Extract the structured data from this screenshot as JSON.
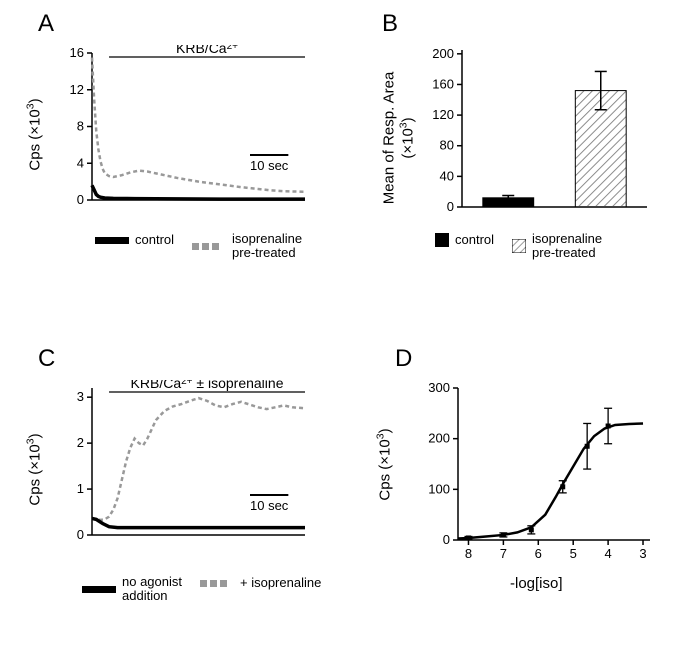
{
  "panelA": {
    "label": "A",
    "type": "line",
    "ylabel": "Cps (×10³)",
    "yticks": [
      0,
      4,
      8,
      12,
      16
    ],
    "ylim": [
      0,
      16
    ],
    "xlim": [
      0,
      100
    ],
    "annotation_text": "KRB/Ca²⁺",
    "annotation_bar_x": [
      8,
      100
    ],
    "scalebar_label": "10 sec",
    "scalebar_length": 18,
    "series": {
      "control": {
        "color": "#000000",
        "linewidth": 3.5,
        "dash": "none",
        "points": [
          [
            0,
            1.6
          ],
          [
            1,
            1.1
          ],
          [
            2,
            0.6
          ],
          [
            3,
            0.4
          ],
          [
            4,
            0.3
          ],
          [
            6,
            0.22
          ],
          [
            10,
            0.18
          ],
          [
            20,
            0.15
          ],
          [
            40,
            0.12
          ],
          [
            60,
            0.1
          ],
          [
            80,
            0.1
          ],
          [
            100,
            0.1
          ]
        ]
      },
      "isoprenaline": {
        "color": "#999999",
        "linewidth": 2.5,
        "dash": "4,3",
        "points": [
          [
            0,
            15.5
          ],
          [
            1,
            11
          ],
          [
            2,
            7.5
          ],
          [
            3,
            5.5
          ],
          [
            4,
            4.2
          ],
          [
            5,
            3.4
          ],
          [
            6,
            2.9
          ],
          [
            8,
            2.6
          ],
          [
            10,
            2.5
          ],
          [
            14,
            2.7
          ],
          [
            18,
            3.0
          ],
          [
            22,
            3.2
          ],
          [
            26,
            3.1
          ],
          [
            30,
            2.9
          ],
          [
            34,
            2.7
          ],
          [
            40,
            2.4
          ],
          [
            50,
            2.0
          ],
          [
            60,
            1.7
          ],
          [
            70,
            1.4
          ],
          [
            78,
            1.2
          ],
          [
            84,
            1.05
          ],
          [
            90,
            0.95
          ],
          [
            100,
            0.9
          ]
        ]
      }
    },
    "legend": {
      "control": "control",
      "iso": "isoprenaline\npre-treated"
    },
    "colors": {
      "axis": "#000000",
      "background": "#ffffff"
    },
    "fontsize": {
      "tick": 13,
      "label": 15,
      "annotation": 14
    }
  },
  "panelB": {
    "label": "B",
    "type": "bar",
    "ylabel": "Mean of Resp. Area\n(×10³)",
    "yticks": [
      0,
      40,
      80,
      120,
      160,
      200
    ],
    "ylim": [
      0,
      205
    ],
    "categories": [
      "control",
      "isoprenaline"
    ],
    "values": [
      12,
      152
    ],
    "errors": [
      3,
      25
    ],
    "bar_fill": [
      "#000000",
      "hatch"
    ],
    "hatch_color": "#808080",
    "bar_width": 0.55,
    "legend": {
      "control": "control",
      "iso": "isoprenaline\npre-treated"
    },
    "colors": {
      "axis": "#000000",
      "background": "#ffffff"
    },
    "fontsize": {
      "tick": 13,
      "label": 15
    }
  },
  "panelC": {
    "label": "C",
    "type": "line",
    "ylabel": "Cps (×10³)",
    "yticks": [
      0,
      1,
      2,
      3
    ],
    "ylim": [
      0,
      3.2
    ],
    "xlim": [
      0,
      100
    ],
    "annotation_text": "KRB/Ca²⁺ ± isoprenaline",
    "annotation_bar_x": [
      8,
      100
    ],
    "scalebar_label": "10 sec",
    "scalebar_length": 18,
    "series": {
      "noagonist": {
        "color": "#000000",
        "linewidth": 3.5,
        "dash": "none",
        "points": [
          [
            0,
            0.36
          ],
          [
            2,
            0.34
          ],
          [
            5,
            0.25
          ],
          [
            8,
            0.18
          ],
          [
            12,
            0.16
          ],
          [
            20,
            0.16
          ],
          [
            30,
            0.16
          ],
          [
            40,
            0.16
          ],
          [
            50,
            0.16
          ],
          [
            60,
            0.16
          ],
          [
            70,
            0.16
          ],
          [
            80,
            0.16
          ],
          [
            90,
            0.16
          ],
          [
            100,
            0.16
          ]
        ]
      },
      "iso": {
        "color": "#999999",
        "linewidth": 2.5,
        "dash": "4,3",
        "points": [
          [
            0,
            0.35
          ],
          [
            2,
            0.34
          ],
          [
            4,
            0.33
          ],
          [
            6,
            0.34
          ],
          [
            8,
            0.4
          ],
          [
            10,
            0.55
          ],
          [
            12,
            0.8
          ],
          [
            14,
            1.2
          ],
          [
            16,
            1.6
          ],
          [
            18,
            1.9
          ],
          [
            20,
            2.1
          ],
          [
            22,
            2.0
          ],
          [
            24,
            1.95
          ],
          [
            26,
            2.1
          ],
          [
            28,
            2.3
          ],
          [
            30,
            2.5
          ],
          [
            34,
            2.7
          ],
          [
            38,
            2.8
          ],
          [
            42,
            2.85
          ],
          [
            46,
            2.92
          ],
          [
            50,
            2.98
          ],
          [
            54,
            2.92
          ],
          [
            58,
            2.82
          ],
          [
            62,
            2.78
          ],
          [
            66,
            2.85
          ],
          [
            70,
            2.9
          ],
          [
            74,
            2.84
          ],
          [
            78,
            2.78
          ],
          [
            82,
            2.74
          ],
          [
            86,
            2.78
          ],
          [
            90,
            2.82
          ],
          [
            94,
            2.78
          ],
          [
            100,
            2.76
          ]
        ]
      }
    },
    "legend": {
      "noagonist": "no agonist\naddition",
      "iso": "+ isoprenaline"
    },
    "colors": {
      "axis": "#000000",
      "background": "#ffffff"
    },
    "fontsize": {
      "tick": 13,
      "label": 15,
      "annotation": 14
    }
  },
  "panelD": {
    "label": "D",
    "type": "dose-response",
    "ylabel": "Cps (×10³)",
    "xlabel": "-log[iso]",
    "yticks": [
      0,
      100,
      200,
      300
    ],
    "ylim": [
      0,
      300
    ],
    "xticks": [
      8,
      7,
      6,
      5,
      4,
      3
    ],
    "xlim": [
      8.3,
      2.8
    ],
    "points_x": [
      8,
      7,
      6.2,
      5.3,
      4.6,
      4
    ],
    "points_y": [
      4,
      10,
      20,
      105,
      185,
      225
    ],
    "errors_y": [
      3,
      4,
      8,
      12,
      45,
      35
    ],
    "curve": [
      [
        8.3,
        3
      ],
      [
        8,
        4
      ],
      [
        7.5,
        7
      ],
      [
        7,
        10
      ],
      [
        6.6,
        15
      ],
      [
        6.2,
        25
      ],
      [
        5.8,
        50
      ],
      [
        5.5,
        85
      ],
      [
        5.3,
        110
      ],
      [
        5.0,
        145
      ],
      [
        4.7,
        180
      ],
      [
        4.4,
        205
      ],
      [
        4.1,
        220
      ],
      [
        3.8,
        227
      ],
      [
        3.4,
        229
      ],
      [
        3.0,
        230
      ]
    ],
    "marker_size": 5,
    "marker_color": "#000000",
    "line_color": "#000000",
    "linewidth": 2.5,
    "colors": {
      "axis": "#000000",
      "background": "#ffffff"
    },
    "fontsize": {
      "tick": 13,
      "label": 15
    }
  }
}
